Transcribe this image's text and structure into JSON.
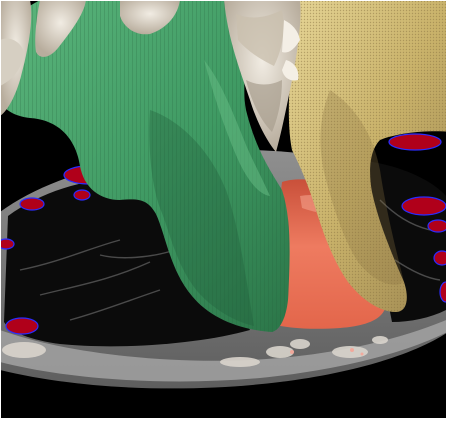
{
  "scene": {
    "colors": {
      "background": "#000000",
      "frame_border": "#ffffff",
      "ct_slice_gray": "#7d7d7d",
      "ct_rim_light": "#a6a6a6",
      "lung_dark": "#0b0b0b",
      "green_structure": "#3f9a63",
      "green_highlight": "#67be86",
      "green_shadow": "#1f5b38",
      "yellow_structure": "#c9b26a",
      "yellow_highlight": "#e6d596",
      "yellow_shadow": "#8a7442",
      "bone_white": "#e9e3d8",
      "bone_shadow": "#b8ad9d",
      "orange_structure": "#e3664b",
      "orange_highlight": "#f0876b",
      "red_vessels": "#b0001a",
      "blue_edges": "#2a2cff"
    }
  }
}
